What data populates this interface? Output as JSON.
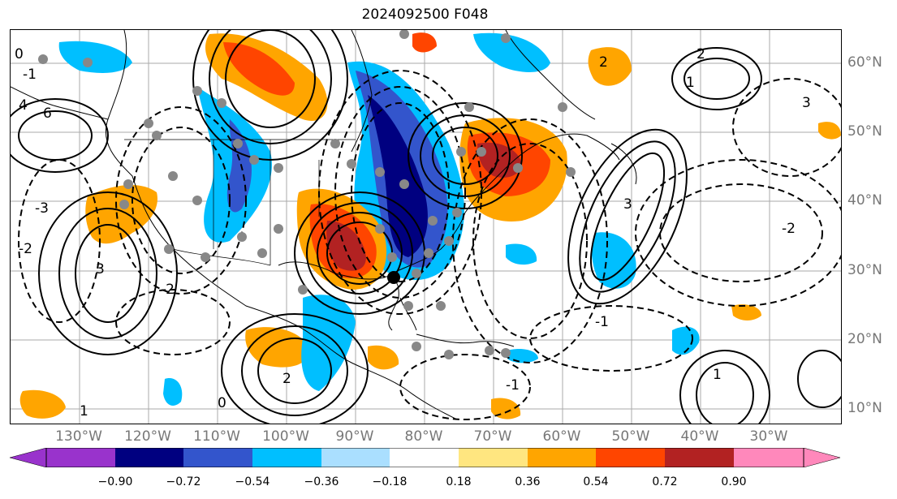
{
  "title": "2024092500 F048",
  "longitude_labels": [
    "130°W",
    "120°W",
    "110°W",
    "100°W",
    "90°W",
    "80°W",
    "70°W",
    "60°W",
    "50°W",
    "40°W",
    "30°W"
  ],
  "latitude_labels": [
    "60°N",
    "50°N",
    "40°N",
    "30°N",
    "20°N",
    "10°N"
  ],
  "colorbar": {
    "tick_labels": [
      "−0.90",
      "−0.72",
      "−0.54",
      "−0.36",
      "−0.18",
      "0.18",
      "0.36",
      "0.54",
      "0.72",
      "0.90"
    ],
    "colors": [
      "#9933cc",
      "#000080",
      "#3355cc",
      "#00bfff",
      "#aadfff",
      "#ffffff",
      "#ffe680",
      "#ffa500",
      "#ff4500",
      "#b22222",
      "#ff88bb"
    ]
  },
  "contour_labels": [
    "0",
    "2",
    "4",
    "6",
    "-1",
    "-2",
    "-3",
    "3",
    "-2",
    "1",
    "-1",
    "0",
    "2",
    "3",
    "-2",
    "-1",
    "1",
    "2",
    "1",
    "3"
  ],
  "fill_colors": {
    "orange": "#ffa500",
    "red_orange": "#ff4500",
    "dark_red": "#b22222",
    "navy": "#000080",
    "blue": "#3355cc",
    "sky": "#00bfff"
  }
}
